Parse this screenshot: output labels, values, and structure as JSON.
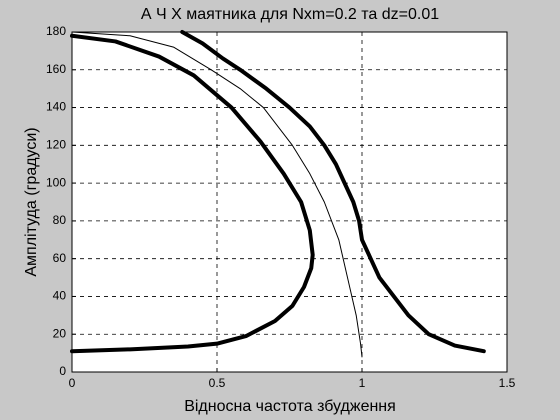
{
  "chart_data": {
    "type": "line",
    "title": "А Ч Х  маятника  для   Nxm=0.2  та  dz=0.01",
    "x_label": "Відносна частота збудження",
    "y_label": "Амплітуда  (градуси)",
    "xlim": [
      0,
      1.5
    ],
    "xticks": [
      0,
      0.5,
      1,
      1.5
    ],
    "ylim": [
      0,
      180
    ],
    "yticks": [
      0,
      20,
      40,
      60,
      80,
      100,
      120,
      140,
      160,
      180
    ],
    "grid": true,
    "series": [
      {
        "color": "#000000",
        "width": 4,
        "x": [
          0,
          0.2,
          0.4,
          0.5,
          0.6,
          0.7,
          0.76,
          0.8,
          0.825,
          0.83,
          0.82,
          0.79,
          0.73,
          0.65,
          0.55,
          0.42,
          0.3,
          0.15,
          0
        ],
        "values": [
          11,
          12,
          13.5,
          15,
          19,
          27,
          35,
          45,
          55,
          62,
          75,
          90,
          105,
          122,
          140,
          157,
          167,
          175,
          178
        ]
      },
      {
        "color": "#000000",
        "width": 1,
        "x": [
          0,
          0.2,
          0.35,
          0.48,
          0.58,
          0.66,
          0.76,
          0.82,
          0.87,
          0.92,
          0.95,
          0.98,
          0.995,
          1
        ],
        "values": [
          180,
          178,
          172,
          160,
          150,
          140,
          120,
          105,
          90,
          70,
          50,
          30,
          15,
          8
        ]
      },
      {
        "color": "#000000",
        "width": 4,
        "x": [
          0.38,
          0.45,
          0.52,
          0.58,
          0.67,
          0.75,
          0.82,
          0.87,
          0.91,
          0.94,
          0.97,
          0.99,
          1.0,
          1.03,
          1.06,
          1.11,
          1.16,
          1.23,
          1.32,
          1.42
        ],
        "values": [
          180,
          174,
          166,
          160,
          150,
          140,
          130,
          120,
          110,
          100,
          90,
          80,
          70,
          60,
          50,
          40,
          30,
          20,
          14,
          11
        ]
      }
    ]
  }
}
